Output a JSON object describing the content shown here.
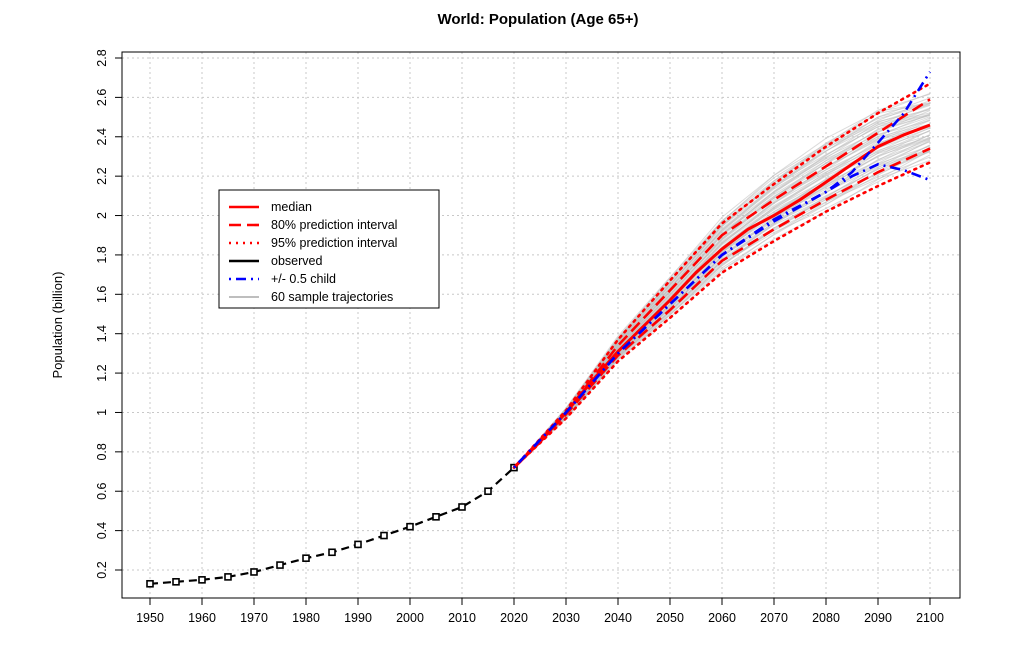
{
  "chart_data": {
    "type": "line",
    "title": "World: Population (Age 65+)",
    "xlabel": "",
    "ylabel": "Population (billion)",
    "xlim": [
      1950,
      2100
    ],
    "ylim": [
      0.1,
      2.8
    ],
    "x_ticks": [
      1950,
      1960,
      1970,
      1980,
      1990,
      2000,
      2010,
      2020,
      2030,
      2040,
      2050,
      2060,
      2070,
      2080,
      2090,
      2100
    ],
    "y_ticks": [
      0.2,
      0.4,
      0.6,
      0.8,
      1,
      1.2,
      1.4,
      1.6,
      1.8,
      2,
      2.2,
      2.4,
      2.6,
      2.8
    ],
    "y_tick_labels": [
      "0.2",
      "0.4",
      "0.6",
      "0.8",
      "1",
      "1.2",
      "1.4",
      "1.6",
      "1.8",
      "2",
      "2.2",
      "2.4",
      "2.6",
      "2.8"
    ],
    "grid": true,
    "legend_position": "top-left",
    "legend": [
      {
        "label": "median",
        "color": "#ff0000",
        "style": "solid"
      },
      {
        "label": "80% prediction interval",
        "color": "#ff0000",
        "style": "dashed"
      },
      {
        "label": "95% prediction interval",
        "color": "#ff0000",
        "style": "dotted"
      },
      {
        "label": "observed",
        "color": "#000000",
        "style": "solid"
      },
      {
        "label": "+/- 0.5 child",
        "color": "#0000ff",
        "style": "dotdash"
      },
      {
        "label": "60 sample trajectories",
        "color": "#bebebe",
        "style": "solid"
      }
    ],
    "series": [
      {
        "name": "observed",
        "color": "#000000",
        "style": "dashed-markers",
        "x": [
          1950,
          1955,
          1960,
          1965,
          1970,
          1975,
          1980,
          1985,
          1990,
          1995,
          2000,
          2005,
          2010,
          2015,
          2020
        ],
        "y": [
          0.13,
          0.14,
          0.15,
          0.165,
          0.19,
          0.225,
          0.26,
          0.29,
          0.33,
          0.375,
          0.42,
          0.47,
          0.52,
          0.6,
          0.72
        ]
      },
      {
        "name": "median",
        "color": "#ff0000",
        "style": "solid",
        "x": [
          2020,
          2025,
          2030,
          2035,
          2040,
          2045,
          2050,
          2055,
          2060,
          2065,
          2070,
          2075,
          2080,
          2085,
          2090,
          2095,
          2100
        ],
        "y": [
          0.72,
          0.85,
          1.0,
          1.16,
          1.31,
          1.44,
          1.57,
          1.71,
          1.83,
          1.93,
          2.0,
          2.08,
          2.17,
          2.26,
          2.35,
          2.41,
          2.46
        ]
      },
      {
        "name": "80% prediction interval (upper)",
        "color": "#ff0000",
        "style": "dashed",
        "x": [
          2020,
          2030,
          2040,
          2050,
          2060,
          2070,
          2080,
          2090,
          2100
        ],
        "y": [
          0.72,
          1.0,
          1.34,
          1.62,
          1.9,
          2.08,
          2.25,
          2.42,
          2.59
        ]
      },
      {
        "name": "80% prediction interval (lower)",
        "color": "#ff0000",
        "style": "dashed",
        "x": [
          2020,
          2030,
          2040,
          2050,
          2060,
          2070,
          2080,
          2090,
          2100
        ],
        "y": [
          0.72,
          0.99,
          1.29,
          1.52,
          1.77,
          1.93,
          2.08,
          2.22,
          2.34
        ]
      },
      {
        "name": "95% prediction interval (upper)",
        "color": "#ff0000",
        "style": "dotted",
        "x": [
          2020,
          2030,
          2040,
          2050,
          2060,
          2070,
          2080,
          2090,
          2100
        ],
        "y": [
          0.72,
          1.01,
          1.37,
          1.67,
          1.96,
          2.16,
          2.35,
          2.52,
          2.67
        ]
      },
      {
        "name": "95% prediction interval (lower)",
        "color": "#ff0000",
        "style": "dotted",
        "x": [
          2020,
          2030,
          2040,
          2050,
          2060,
          2070,
          2080,
          2090,
          2100
        ],
        "y": [
          0.72,
          0.97,
          1.26,
          1.48,
          1.71,
          1.87,
          2.02,
          2.15,
          2.27
        ]
      },
      {
        "name": "+/- 0.5 child (upper)",
        "color": "#0000ff",
        "style": "dotdash",
        "x": [
          2020,
          2030,
          2040,
          2050,
          2060,
          2070,
          2080,
          2085,
          2090,
          2095,
          2100
        ],
        "y": [
          0.72,
          1.0,
          1.3,
          1.55,
          1.8,
          1.98,
          2.12,
          2.22,
          2.37,
          2.52,
          2.73
        ]
      },
      {
        "name": "+/- 0.5 child (lower)",
        "color": "#0000ff",
        "style": "dotdash",
        "x": [
          2020,
          2030,
          2040,
          2050,
          2060,
          2070,
          2080,
          2085,
          2090,
          2095,
          2100
        ],
        "y": [
          0.72,
          1.0,
          1.3,
          1.55,
          1.8,
          1.97,
          2.12,
          2.2,
          2.26,
          2.23,
          2.18
        ]
      }
    ],
    "sample_trajectories": {
      "name": "60 sample trajectories",
      "count": 60,
      "color": "#bebebe",
      "x": [
        2020,
        2030,
        2040,
        2050,
        2060,
        2070,
        2080,
        2090,
        2100
      ],
      "upper_envelope": [
        0.72,
        1.02,
        1.38,
        1.68,
        1.98,
        2.2,
        2.38,
        2.53,
        2.6
      ],
      "lower_envelope": [
        0.72,
        0.97,
        1.27,
        1.49,
        1.73,
        1.9,
        2.04,
        2.18,
        2.3
      ]
    }
  }
}
